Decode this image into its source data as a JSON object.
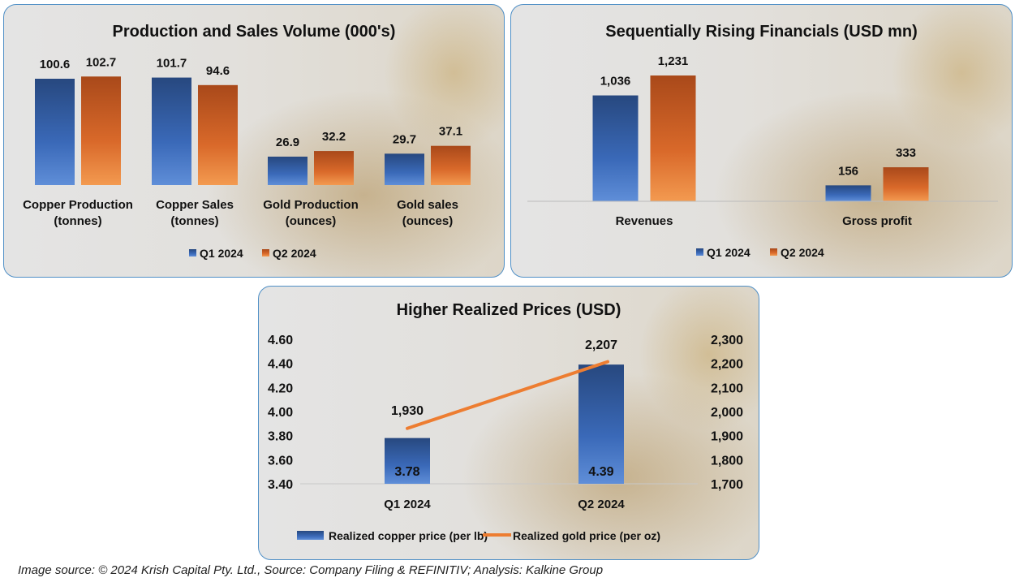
{
  "chart_data": [
    {
      "type": "bar",
      "title": "Production and Sales Volume (000's)",
      "categories": [
        [
          "Copper Production",
          "(tonnes)"
        ],
        [
          "Copper Sales",
          "(tonnes)"
        ],
        [
          "Gold Production",
          "(ounces)"
        ],
        [
          "Gold sales",
          "(ounces)"
        ]
      ],
      "series": [
        {
          "name": "Q1 2024",
          "values": [
            100.6,
            101.7,
            26.9,
            29.7
          ],
          "labels": [
            "100.6",
            "101.7",
            "26.9",
            "29.7"
          ],
          "color": "#2f5ea8"
        },
        {
          "name": "Q2 2024",
          "values": [
            102.7,
            94.6,
            32.2,
            37.1
          ],
          "labels": [
            "102.7",
            "94.6",
            "32.2",
            "37.1"
          ],
          "color": "#d9692a"
        }
      ],
      "legend": "bottom"
    },
    {
      "type": "bar",
      "title": "Sequentially Rising  Financials (USD mn)",
      "categories": [
        [
          "Revenues"
        ],
        [
          "Gross profit"
        ]
      ],
      "series": [
        {
          "name": "Q1 2024",
          "values": [
            1036,
            156
          ],
          "labels": [
            "1,036",
            "156"
          ],
          "color": "#2f5ea8"
        },
        {
          "name": "Q2 2024",
          "values": [
            1231,
            333
          ],
          "labels": [
            "1,231",
            "333"
          ],
          "color": "#d9692a"
        }
      ],
      "legend": "bottom"
    },
    {
      "type": "bar+line",
      "title": "Higher Realized Prices (USD)",
      "categories": [
        "Q1 2024",
        "Q2 2024"
      ],
      "bar_series": {
        "name": "Realized copper price (per lb)",
        "values": [
          3.78,
          4.39
        ],
        "labels": [
          "3.78",
          "4.39"
        ],
        "color": "#2f5ea8"
      },
      "line_series": {
        "name": "Realized gold price  (per oz)",
        "values": [
          1930,
          2207
        ],
        "labels": [
          "1,930",
          "2,207"
        ],
        "color": "#ed7d31"
      },
      "y_left": {
        "range": [
          3.4,
          4.6
        ],
        "ticks": [
          "3.40",
          "3.60",
          "3.80",
          "4.00",
          "4.20",
          "4.40",
          "4.60"
        ]
      },
      "y_right": {
        "range": [
          1700,
          2300
        ],
        "ticks": [
          "1,700",
          "1,800",
          "1,900",
          "2,000",
          "2,100",
          "2,200",
          "2,300"
        ]
      },
      "legend": "bottom"
    }
  ],
  "caption": "Image source: © 2024 Krish Capital Pty. Ltd., Source: Company Filing & REFINITIV; Analysis: Kalkine Group"
}
